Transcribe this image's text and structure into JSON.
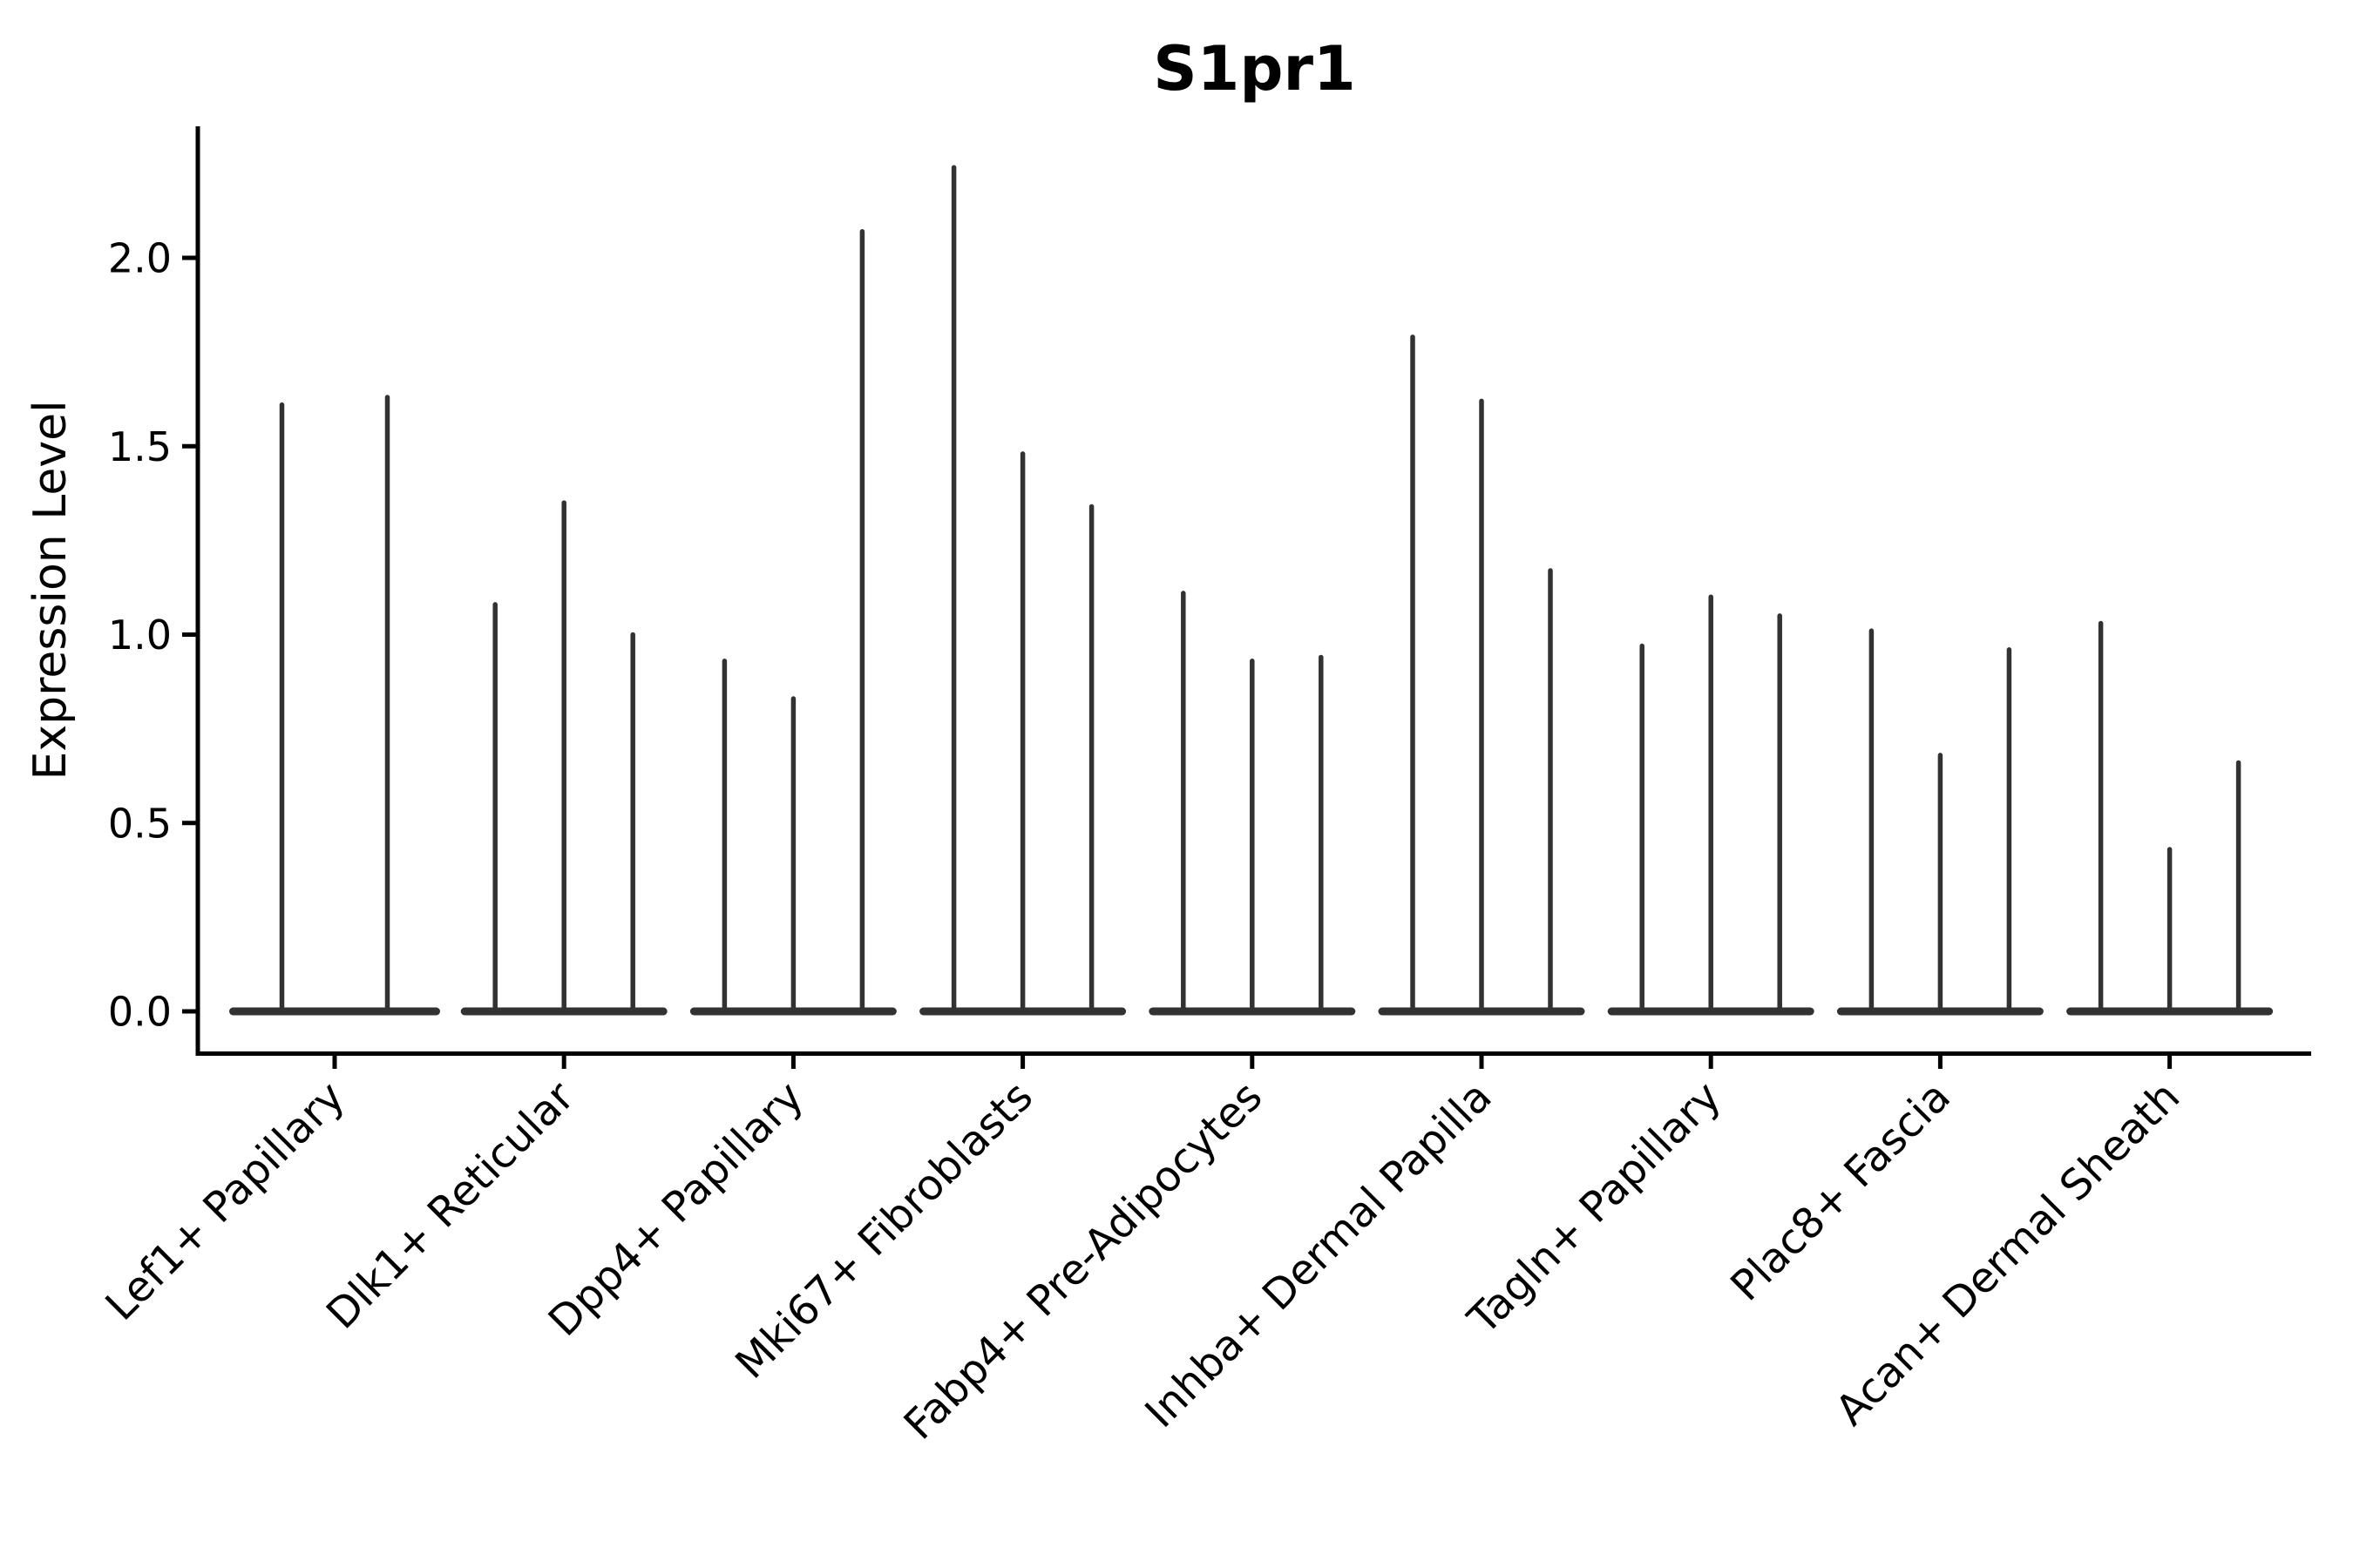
{
  "chart_data": {
    "type": "violin",
    "title": "S1pr1",
    "ylabel": "Expression Level",
    "xlabel": "",
    "ylim": [
      0,
      2.35
    ],
    "ytick_labels": [
      "0.0",
      "0.5",
      "1.0",
      "1.5",
      "2.0"
    ],
    "ytick_values": [
      0.0,
      0.5,
      1.0,
      1.5,
      2.0
    ],
    "grid": false,
    "legend": "none",
    "violin_color": "#323232",
    "axis_color": "#000000",
    "background_color": "#ffffff",
    "categories": [
      "Lef1+ Papillary",
      "Dlk1+ Reticular",
      "Dpp4+ Papillary",
      "Mki67+ Fibroblasts",
      "Fabp4+ Pre-Adipocytes",
      "Inhba+ Dermal Papilla",
      "Tagln+ Papillary",
      "Plac8+ Fascia",
      "Acan+ Dermal Sheath"
    ],
    "groups": [
      {
        "category": "Lef1+ Papillary",
        "violin_maxima": [
          1.61,
          1.63
        ]
      },
      {
        "category": "Dlk1+ Reticular",
        "violin_maxima": [
          1.08,
          1.35,
          1.0
        ]
      },
      {
        "category": "Dpp4+ Papillary",
        "violin_maxima": [
          0.93,
          0.83,
          2.07
        ]
      },
      {
        "category": "Mki67+ Fibroblasts",
        "violin_maxima": [
          2.24,
          1.48,
          1.34
        ]
      },
      {
        "category": "Fabp4+ Pre-Adipocytes",
        "violin_maxima": [
          1.11,
          0.93,
          0.94
        ]
      },
      {
        "category": "Inhba+ Dermal Papilla",
        "violin_maxima": [
          1.79,
          1.62,
          1.17
        ]
      },
      {
        "category": "Tagln+ Papillary",
        "violin_maxima": [
          0.97,
          1.1,
          1.05
        ]
      },
      {
        "category": "Plac8+ Fascia",
        "violin_maxima": [
          1.01,
          0.68,
          0.96
        ]
      },
      {
        "category": "Acan+ Dermal Sheath",
        "violin_maxima": [
          1.03,
          0.43,
          0.66
        ]
      }
    ]
  }
}
